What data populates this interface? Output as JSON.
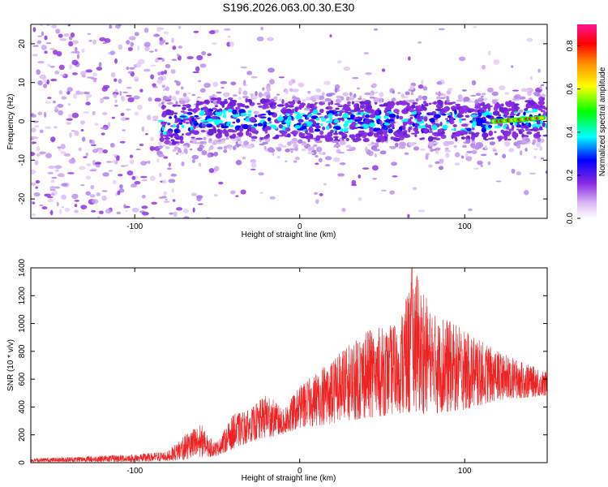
{
  "title": "S196.2026.063.00.30.E30",
  "chart_data": [
    {
      "type": "heatmap",
      "xlabel": "Height of straight line (km)",
      "ylabel": "Frequency (Hz)",
      "xlim": [
        -163,
        150
      ],
      "ylim": [
        -25,
        25
      ],
      "xticks": [
        -100,
        0,
        100
      ],
      "yticks": [
        -20,
        -10,
        0,
        10,
        20
      ],
      "colorbar": {
        "label": "Normalized spectral amplitude",
        "range": [
          0,
          0.9
        ],
        "ticks": [
          0.0,
          0.2,
          0.4,
          0.6,
          0.8
        ],
        "colors": [
          "#ffffff",
          "#d9b8f5",
          "#8a2be2",
          "#0000ff",
          "#00ffff",
          "#00ff00",
          "#ffff00",
          "#ff8c00",
          "#ff0000",
          "#ff1493"
        ]
      },
      "ridge": {
        "description_points_x": [
          -80,
          -50,
          0,
          50,
          100,
          120,
          150
        ],
        "center_freq_y": [
          -1,
          1,
          0,
          0,
          0,
          0,
          1
        ]
      }
    },
    {
      "type": "line",
      "xlabel": "Height of straight line (km)",
      "ylabel": "SNR (10 * v/v)",
      "xlim": [
        -163,
        150
      ],
      "ylim": [
        0,
        1400
      ],
      "xticks": [
        -100,
        0,
        100
      ],
      "yticks": [
        0,
        200,
        400,
        600,
        800,
        1000,
        1200,
        1400
      ],
      "color": "#ee2222",
      "envelope": {
        "x": [
          -163,
          -100,
          -80,
          -70,
          -60,
          -55,
          -50,
          -40,
          -30,
          -20,
          -10,
          0,
          20,
          40,
          60,
          70,
          80,
          100,
          120,
          150
        ],
        "upper": [
          30,
          60,
          80,
          200,
          280,
          180,
          150,
          350,
          380,
          500,
          380,
          550,
          750,
          950,
          1000,
          1400,
          1100,
          950,
          800,
          650
        ],
        "lower": [
          5,
          5,
          10,
          20,
          40,
          40,
          50,
          100,
          150,
          180,
          200,
          250,
          280,
          320,
          350,
          350,
          350,
          380,
          450,
          480
        ]
      }
    }
  ]
}
